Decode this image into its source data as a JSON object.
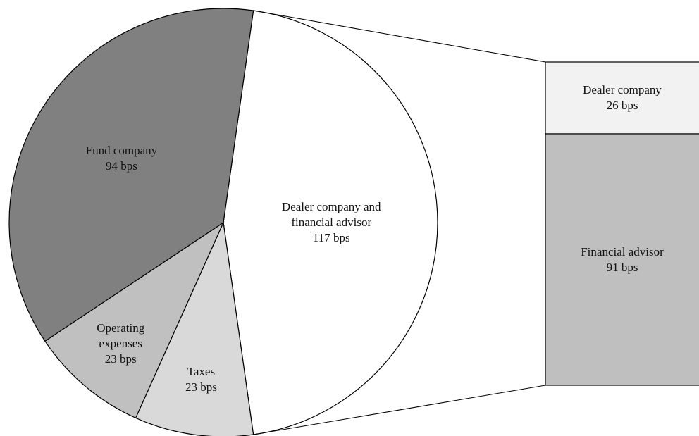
{
  "chart_data": [
    {
      "type": "pie",
      "categories": [
        "Dealer company and financial advisor",
        "Taxes",
        "Operating expenses",
        "Fund company"
      ],
      "values": [
        117,
        23,
        23,
        94
      ],
      "value_labels": [
        "117 bps",
        "23 bps",
        "23 bps",
        "94 bps"
      ],
      "colors": [
        "#ffffff",
        "#d9d9d9",
        "#c0c0c0",
        "#808080"
      ]
    },
    {
      "type": "bar",
      "categories": [
        "Dealer company",
        "Financial advisor"
      ],
      "values": [
        26,
        91
      ],
      "value_labels": [
        "26 bps",
        "91 bps"
      ],
      "colors": [
        "#f2f2f2",
        "#bfbfbf"
      ]
    }
  ]
}
